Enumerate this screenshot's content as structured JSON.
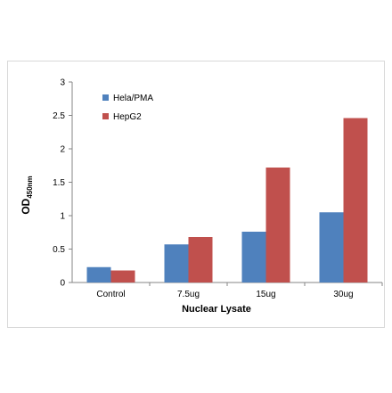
{
  "chart_data": {
    "type": "bar",
    "title": "",
    "xlabel": "Nuclear Lysate",
    "ylabel_main": "OD",
    "ylabel_sub": "450nm",
    "categories": [
      "Control",
      "7.5ug",
      "15ug",
      "30ug"
    ],
    "series": [
      {
        "name": "Hela/PMA",
        "color": "#4f81bd",
        "values": [
          0.23,
          0.57,
          0.76,
          1.05
        ]
      },
      {
        "name": "HepG2",
        "color": "#c0504d",
        "values": [
          0.18,
          0.68,
          1.72,
          2.46
        ]
      }
    ],
    "ylim": [
      0,
      3
    ],
    "yticks": [
      "0",
      "0.5",
      "1",
      "1.5",
      "2",
      "2.5",
      "3"
    ],
    "grid": false,
    "legend_position": "top-left"
  }
}
